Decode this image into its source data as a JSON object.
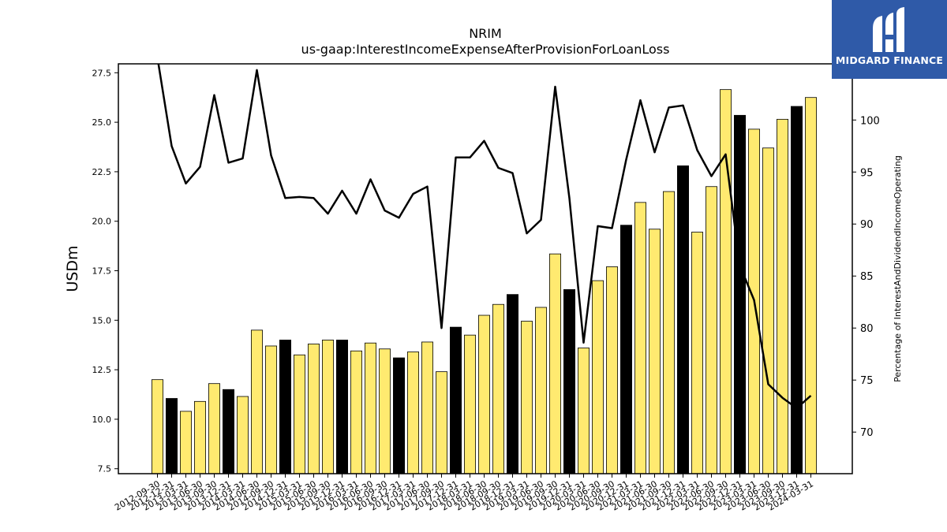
{
  "chart_data": {
    "type": "bar+line",
    "title": "NRIM",
    "subtitle": "us-gaap:InterestIncomeExpenseAfterProvisionForLoanLoss",
    "ylabel": "USDm",
    "y2label": "Percentage of InterestAndDividendIncomeOperating",
    "ylim": [
      7.25,
      27.95
    ],
    "y2lim": [
      66.0,
      105.4
    ],
    "yticks": [
      "7.5",
      "10.0",
      "12.5",
      "15.0",
      "17.5",
      "20.0",
      "22.5",
      "25.0",
      "27.5"
    ],
    "y2ticks": [
      "70",
      "75",
      "80",
      "85",
      "90",
      "95",
      "100"
    ],
    "categories": [
      "2012-09-30",
      "2012-12-31",
      "2013-03-31",
      "2013-06-30",
      "2013-09-30",
      "2013-12-31",
      "2014-03-31",
      "2014-06-30",
      "2014-09-30",
      "2014-12-31",
      "2015-03-31",
      "2015-06-30",
      "2015-09-30",
      "2015-12-31",
      "2016-03-31",
      "2016-06-30",
      "2016-09-30",
      "2016-12-31",
      "2017-03-31",
      "2017-06-30",
      "2017-09-30",
      "2017-12-31",
      "2018-03-31",
      "2018-06-30",
      "2018-09-30",
      "2018-12-31",
      "2019-03-31",
      "2019-06-30",
      "2019-09-30",
      "2019-12-31",
      "2020-03-31",
      "2020-06-30",
      "2020-09-30",
      "2020-12-31",
      "2021-03-31",
      "2021-06-30",
      "2021-09-30",
      "2021-12-31",
      "2022-03-31",
      "2022-06-30",
      "2022-09-30",
      "2022-12-31",
      "2023-03-31",
      "2023-06-30",
      "2023-09-30",
      "2023-12-31",
      "2024-03-31"
    ],
    "series": [
      {
        "kind": "bar",
        "values": [
          12.0,
          11.05,
          10.4,
          10.9,
          11.8,
          11.5,
          11.15,
          14.5,
          13.7,
          14.0,
          13.25,
          13.8,
          14.0,
          14.0,
          13.45,
          13.85,
          13.55,
          13.1,
          13.4,
          13.9,
          12.4,
          14.65,
          14.25,
          15.25,
          15.8,
          16.3,
          14.95,
          15.65,
          18.35,
          16.55,
          13.6,
          17.0,
          17.7,
          19.8,
          20.95,
          19.6,
          21.5,
          22.8,
          19.45,
          21.75,
          26.65,
          25.35,
          24.65,
          23.7,
          25.15,
          25.8,
          26.25
        ],
        "colors": [
          "#ffea70",
          "#000000",
          "#ffea70",
          "#ffea70",
          "#ffea70",
          "#000000",
          "#ffea70",
          "#ffea70",
          "#ffea70",
          "#000000",
          "#ffea70",
          "#ffea70",
          "#ffea70",
          "#000000",
          "#ffea70",
          "#ffea70",
          "#ffea70",
          "#000000",
          "#ffea70",
          "#ffea70",
          "#ffea70",
          "#000000",
          "#ffea70",
          "#ffea70",
          "#ffea70",
          "#000000",
          "#ffea70",
          "#ffea70",
          "#ffea70",
          "#000000",
          "#ffea70",
          "#ffea70",
          "#ffea70",
          "#000000",
          "#ffea70",
          "#ffea70",
          "#ffea70",
          "#000000",
          "#ffea70",
          "#ffea70",
          "#ffea70",
          "#000000",
          "#ffea70",
          "#ffea70",
          "#ffea70",
          "#000000",
          "#ffea70"
        ]
      },
      {
        "kind": "line",
        "axis": "right",
        "values": [
          106.0,
          97.5,
          93.9,
          95.5,
          102.4,
          95.9,
          96.3,
          104.8,
          96.6,
          92.5,
          92.6,
          92.5,
          91.0,
          93.2,
          91.0,
          94.3,
          91.3,
          90.6,
          92.9,
          93.6,
          80.0,
          96.4,
          96.4,
          98.0,
          95.4,
          94.9,
          89.1,
          90.4,
          103.2,
          92.5,
          78.6,
          89.8,
          89.6,
          96.2,
          101.9,
          96.9,
          101.2,
          101.4,
          97.1,
          94.6,
          96.7,
          86.0,
          82.7,
          74.6,
          73.3,
          72.3,
          73.5
        ]
      }
    ],
    "grid": false,
    "legend": "none"
  },
  "logo": {
    "text": "MIDGARD FINANCE"
  }
}
